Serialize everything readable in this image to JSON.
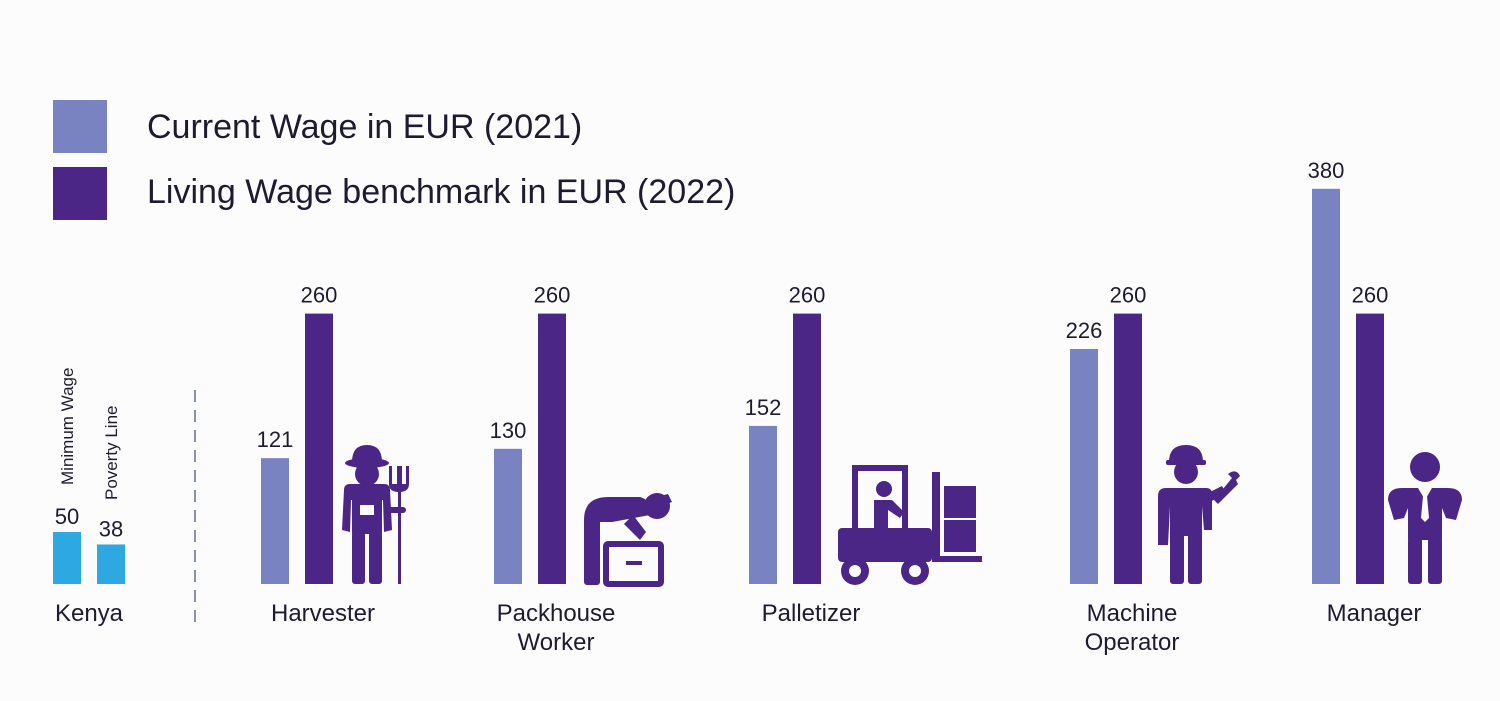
{
  "colors": {
    "current": "#7a83c2",
    "living": "#4b2687",
    "kenya": "#2ea8e0",
    "icon": "#4b2687",
    "text": "#1e1b2e",
    "divider": "#8a8fb5"
  },
  "legend": [
    {
      "label": "Current Wage in EUR (2021)",
      "color": "#7a83c2"
    },
    {
      "label": "Living Wage benchmark in EUR (2022)",
      "color": "#4b2687"
    }
  ],
  "chart_data": {
    "type": "bar",
    "categories": [
      "Harvester",
      "Packhouse Worker",
      "Palletizer",
      "Machine Operator",
      "Manager"
    ],
    "category_lines": [
      [
        "Harvester"
      ],
      [
        "Packhouse",
        "Worker"
      ],
      [
        "Palletizer"
      ],
      [
        "Machine",
        "Operator"
      ],
      [
        "Manager"
      ]
    ],
    "series": [
      {
        "name": "Current Wage in EUR (2021)",
        "values": [
          121,
          130,
          152,
          226,
          380
        ]
      },
      {
        "name": "Living Wage benchmark in EUR (2022)",
        "values": [
          260,
          260,
          260,
          260,
          260
        ]
      }
    ],
    "reference": {
      "group_label": "Kenya",
      "items": [
        {
          "label": "Minimum Wage",
          "value": 50
        },
        {
          "label": "Poverty Line",
          "value": 38
        }
      ]
    },
    "icons": [
      "farmer-with-pitchfork-icon",
      "worker-lifting-box-icon",
      "forklift-icon",
      "technician-with-wrench-icon",
      "manager-icon"
    ]
  }
}
